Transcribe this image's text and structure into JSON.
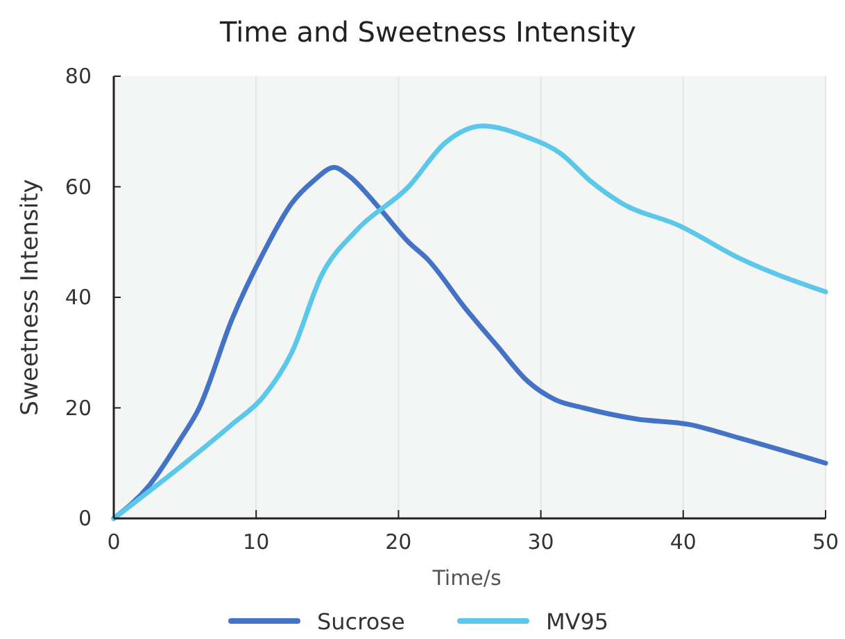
{
  "chart_data": {
    "type": "line",
    "title": "Time and Sweetness Intensity",
    "xlabel": "Time/s",
    "ylabel": "Sweetness Intensity",
    "xlim": [
      0,
      50
    ],
    "ylim": [
      0,
      80
    ],
    "xticks": [
      0,
      10,
      20,
      30,
      40,
      50
    ],
    "yticks": [
      0,
      20,
      40,
      60,
      80
    ],
    "grid": "x",
    "legend": "bottom",
    "marker": "none",
    "line_style": "solid",
    "series": [
      {
        "name": "Sucrose",
        "color": "#4472c4",
        "x": [
          0,
          2.5,
          4.6,
          6,
          8.3,
          10.5,
          12.5,
          14,
          15.5,
          16.5,
          18.7,
          20.7,
          22,
          24.7,
          27,
          29,
          31,
          33,
          36.7,
          40.4,
          44,
          50
        ],
        "values": [
          0,
          6,
          14,
          20,
          36,
          48,
          57,
          61,
          63.5,
          62,
          56,
          50,
          47,
          38,
          31,
          25,
          21.5,
          20,
          18,
          17,
          14.5,
          10
        ]
      },
      {
        "name": "MV95",
        "color": "#5bc8ea",
        "x": [
          0,
          5,
          8.3,
          10.5,
          12.5,
          14.6,
          17,
          20.7,
          23.3,
          25.9,
          29,
          31.4,
          33.5,
          35.7,
          39.7,
          44,
          50
        ],
        "values": [
          0,
          10,
          17,
          22,
          30,
          44,
          52,
          60,
          68,
          71,
          69,
          66,
          61,
          57,
          53,
          47,
          41
        ]
      }
    ]
  }
}
